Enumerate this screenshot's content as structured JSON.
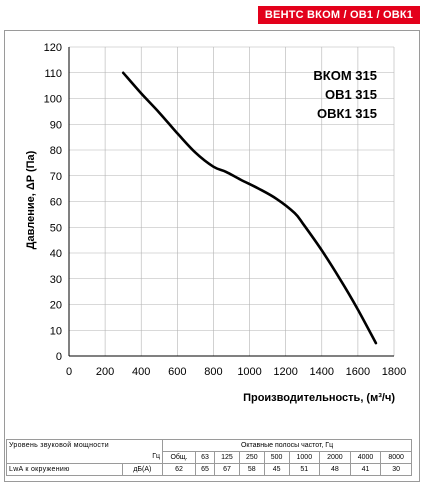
{
  "brand": {
    "label": "ВЕНТС ВКОМ / ОВ1 / ОВК1",
    "color": "#e3001b"
  },
  "chart_data": {
    "type": "line",
    "xlabel": "Производительность, (м³/ч)",
    "ylabel": "Давление, ΔP (Па)",
    "xlim": [
      0,
      1800
    ],
    "ylim": [
      0,
      120
    ],
    "x_ticks": [
      "0",
      "200",
      "400",
      "600",
      "800",
      "1000",
      "1200",
      "1400",
      "1600",
      "1800"
    ],
    "y_ticks": [
      "0",
      "10",
      "20",
      "30",
      "40",
      "50",
      "60",
      "70",
      "80",
      "90",
      "100",
      "110",
      "120"
    ],
    "grid": true,
    "annotations": [
      "ВКОМ 315",
      "ОВ1 315",
      "ОВК1 315"
    ],
    "series": [
      {
        "x": [
          300,
          400,
          500,
          600,
          700,
          800,
          870,
          950,
          1050,
          1150,
          1250,
          1300,
          1400,
          1500,
          1600,
          1700
        ],
        "y": [
          110,
          102,
          94.5,
          86.5,
          79,
          73.5,
          71.5,
          68.5,
          65,
          61,
          55.5,
          51,
          41,
          30,
          18,
          5
        ]
      }
    ]
  },
  "table": {
    "header_left": "Уровень звуковой мощности",
    "header_right": "Октавные полосы частот, Гц",
    "unit_hz": "Гц",
    "unit_db": "дБ(А)",
    "row_label": "LwA к окружению",
    "columns": [
      "Общ.",
      "63",
      "125",
      "250",
      "500",
      "1000",
      "2000",
      "4000",
      "8000"
    ],
    "values": [
      "62",
      "65",
      "67",
      "58",
      "45",
      "51",
      "48",
      "41",
      "30"
    ]
  }
}
